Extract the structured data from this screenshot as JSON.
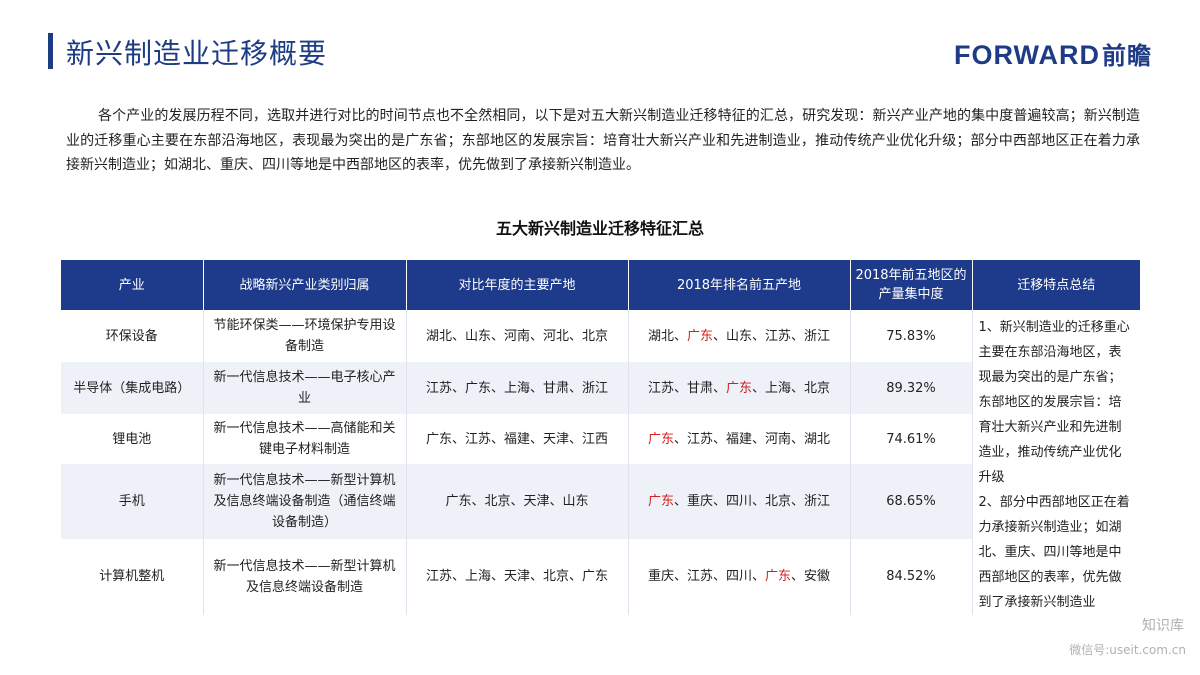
{
  "header": {
    "title": "新兴制造业迁移概要",
    "logo_text": "FORWARD",
    "logo_cn": "前瞻"
  },
  "intro": "各个产业的发展历程不同，选取并进行对比的时间节点也不全然相同，以下是对五大新兴制造业迁移特征的汇总，研究发现：新兴产业产地的集中度普遍较高；新兴制造业的迁移重心主要在东部沿海地区，表现最为突出的是广东省；东部地区的发展宗旨：培育壮大新兴产业和先进制造业，推动传统产业优化升级；部分中西部地区正在着力承接新兴制造业；如湖北、重庆、四川等地是中西部地区的表率，优先做到了承接新兴制造业。",
  "table": {
    "title": "五大新兴制造业迁移特征汇总",
    "headers": [
      "产业",
      "战略新兴产业类别归属",
      "对比年度的主要产地",
      "2018年排名前五产地",
      "2018年前五地区的产量集中度",
      "迁移特点总结"
    ],
    "rows": [
      {
        "industry": "环保设备",
        "category": "节能环保类——环境保护专用设备制造",
        "past": "湖北、山东、河南、河北、北京",
        "top5": [
          "湖北、",
          "广东",
          "、山东、江苏、浙江"
        ],
        "concentration": "75.83%"
      },
      {
        "industry": "半导体（集成电路）",
        "category": "新一代信息技术——电子核心产业",
        "past": "江苏、广东、上海、甘肃、浙江",
        "top5": [
          "江苏、甘肃、",
          "广东",
          "、上海、北京"
        ],
        "concentration": "89.32%"
      },
      {
        "industry": "锂电池",
        "category": "新一代信息技术——高储能和关键电子材料制造",
        "past": "广东、江苏、福建、天津、江西",
        "top5": [
          "",
          "广东",
          "、江苏、福建、河南、湖北"
        ],
        "concentration": "74.61%"
      },
      {
        "industry": "手机",
        "category": "新一代信息技术——新型计算机及信息终端设备制造（通信终端设备制造）",
        "past": "广东、北京、天津、山东",
        "top5": [
          "",
          "广东",
          "、重庆、四川、北京、浙江"
        ],
        "concentration": "68.65%"
      },
      {
        "industry": "计算机整机",
        "category": "新一代信息技术——新型计算机及信息终端设备制造",
        "past": "江苏、上海、天津、北京、广东",
        "top5": [
          "重庆、江苏、四川、",
          "广东",
          "、安徽"
        ],
        "concentration": "84.52%"
      }
    ],
    "summary": "1、新兴制造业的迁移重心主要在东部沿海地区，表现最为突出的是广东省；东部地区的发展宗旨：培育壮大新兴产业和先进制造业，推动传统产业优化升级\n2、部分中西部地区正在着力承接新兴制造业；如湖北、重庆、四川等地是中西部地区的表率，优先做到了承接新兴制造业"
  },
  "watermark": {
    "line1": "知识库",
    "line2": "微信号:useit.com.cn"
  },
  "colors": {
    "brand": "#1e3c86",
    "header_bg": "#1e3a8a",
    "highlight": "#d42020",
    "stripe": "#eef1f8"
  }
}
